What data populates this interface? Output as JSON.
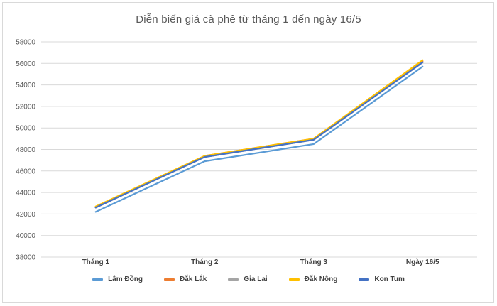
{
  "window": {
    "background": "#FFFFFF",
    "border_color": "#D9D9D9"
  },
  "chart_data": {
    "type": "line",
    "title": "Diễn biến giá cà phê từ tháng 1 đến ngày 16/5",
    "categories": [
      "Tháng 1",
      "Tháng 2",
      "Tháng 3",
      "Ngày 16/5"
    ],
    "series": [
      {
        "name": "Lâm Đồng",
        "color": "#5B9BD5",
        "values": [
          42200,
          46900,
          48500,
          55700
        ]
      },
      {
        "name": "Đắk Lắk",
        "color": "#ED7D31",
        "values": [
          42600,
          47400,
          49000,
          56200
        ]
      },
      {
        "name": "Gia Lai",
        "color": "#A5A5A5",
        "values": [
          42600,
          47300,
          48900,
          56100
        ]
      },
      {
        "name": "Đắk Nông",
        "color": "#FFC000",
        "values": [
          42700,
          47400,
          49000,
          56300
        ]
      },
      {
        "name": "Kon Tum",
        "color": "#4472C4",
        "values": [
          42600,
          47300,
          48900,
          56100
        ]
      }
    ],
    "ylim": [
      38000,
      58000
    ],
    "y_step": 2000,
    "grid": true,
    "legend_position": "bottom",
    "styles": {
      "title_color": "#595959",
      "axis_label_color": "#595959",
      "legend_text_color": "#404040",
      "gridline_color": "#D9D9D9",
      "line_width": 2.25
    }
  }
}
